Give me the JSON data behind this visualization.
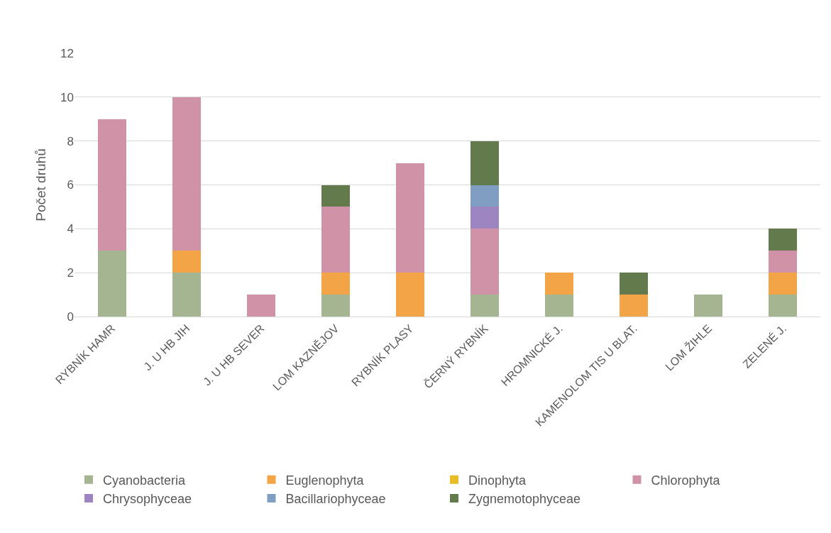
{
  "chart_data": {
    "type": "bar",
    "stacked": true,
    "ylabel": "Počet druhů",
    "categories": [
      "RYBNÍK HAMR",
      "J. U HB JIH",
      "J. U HB SEVER",
      "LOM KAZNĚJOV",
      "RYBNÍK PLASY",
      "ČERNÝ RYBNÍK",
      "HROMNICKÉ J.",
      "KAMENOLOM TIS U BLAT.",
      "LOM ŽIHLE",
      "ZELENÉ J."
    ],
    "series": [
      {
        "name": "Cyanobacteria",
        "color": "#a5b592",
        "values": [
          3,
          2,
          0,
          1,
          0,
          1,
          1,
          0,
          1,
          1
        ]
      },
      {
        "name": "Euglenophyta",
        "color": "#f3a447",
        "values": [
          0,
          1,
          0,
          1,
          2,
          0,
          1,
          1,
          0,
          1
        ]
      },
      {
        "name": "Dinophyta",
        "color": "#e7bc29",
        "values": [
          0,
          0,
          0,
          0,
          0,
          0,
          0,
          0,
          0,
          0
        ]
      },
      {
        "name": "Chlorophyta",
        "color": "#d092a7",
        "values": [
          6,
          7,
          1,
          3,
          5,
          3,
          0,
          0,
          0,
          1
        ]
      },
      {
        "name": "Chrysophyceae",
        "color": "#9c85c0",
        "values": [
          0,
          0,
          0,
          0,
          0,
          1,
          0,
          0,
          0,
          0
        ]
      },
      {
        "name": "Bacillariophyceae",
        "color": "#809ec2",
        "values": [
          0,
          0,
          0,
          0,
          0,
          1,
          0,
          0,
          0,
          0
        ]
      },
      {
        "name": "Zygnemotophyceae",
        "color": "#637a4c",
        "values": [
          0,
          0,
          0,
          1,
          0,
          2,
          0,
          1,
          0,
          1
        ]
      }
    ],
    "ylim": [
      0,
      12
    ],
    "yticks": [
      0,
      2,
      4,
      6,
      8,
      10,
      12
    ],
    "grid": "y",
    "legend": "bottom"
  }
}
